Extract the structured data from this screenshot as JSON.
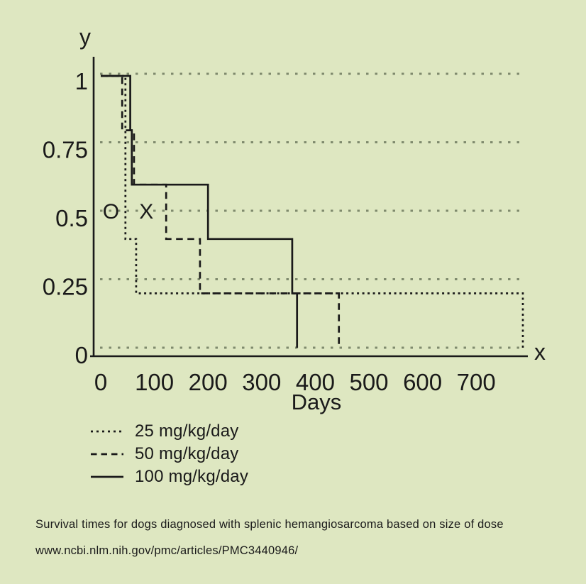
{
  "colors": {
    "background": "#dee7c1",
    "ink": "#1a1a1a",
    "gridline": "#7f8a6d"
  },
  "chart_data": {
    "type": "line",
    "subtype": "kaplan-meier-step-survival",
    "title": "Survival times for dogs diagnosed with splenic hemangiosarcoma based on size of dose",
    "xlabel": "Days",
    "ylabel": "",
    "x_axis": {
      "letter": "x",
      "ticks": [
        0,
        100,
        200,
        300,
        400,
        500,
        600,
        700
      ],
      "range": [
        0,
        800
      ]
    },
    "y_axis": {
      "letter": "y",
      "ticks": [
        1,
        0.75,
        0.5,
        0.25,
        0
      ],
      "tick_labels": [
        "1",
        "0.75",
        "0.5",
        "0.25",
        "0"
      ],
      "range": [
        0,
        1
      ]
    },
    "grid": "horizontal dotted gridlines at each y tick",
    "legend_position": "below-left",
    "series": [
      {
        "name": "25 mg/kg/day",
        "line_style": "dotted",
        "steps": [
          [
            0,
            1
          ],
          [
            46,
            1
          ],
          [
            46,
            0.4
          ],
          [
            66,
            0.4
          ],
          [
            66,
            0.2
          ],
          [
            787,
            0.2
          ],
          [
            787,
            0
          ]
        ]
      },
      {
        "name": "50 mg/kg/day",
        "line_style": "dashed",
        "steps": [
          [
            0,
            1
          ],
          [
            40,
            1
          ],
          [
            40,
            0.8
          ],
          [
            62,
            0.8
          ],
          [
            62,
            0.6
          ],
          [
            122,
            0.6
          ],
          [
            122,
            0.4
          ],
          [
            185,
            0.4
          ],
          [
            185,
            0.2
          ],
          [
            444,
            0.2
          ],
          [
            444,
            0
          ]
        ]
      },
      {
        "name": "100 mg/kg/day",
        "line_style": "solid",
        "steps": [
          [
            0,
            1
          ],
          [
            55,
            1
          ],
          [
            55,
            0.8
          ],
          [
            58,
            0.8
          ],
          [
            58,
            0.6
          ],
          [
            200,
            0.6
          ],
          [
            200,
            0.4
          ],
          [
            357,
            0.4
          ],
          [
            357,
            0.2
          ],
          [
            366,
            0.2
          ],
          [
            366,
            0
          ]
        ]
      }
    ],
    "annotations": [
      {
        "text": "O",
        "day": 19,
        "value": 0.5
      },
      {
        "text": "X",
        "day": 85,
        "value": 0.5
      }
    ]
  },
  "legend": {
    "items": [
      {
        "label": "25 mg/kg/day",
        "line_style": "dotted"
      },
      {
        "label": "50 mg/kg/day",
        "line_style": "dashed"
      },
      {
        "label": "100 mg/kg/day",
        "line_style": "solid"
      }
    ]
  },
  "caption": {
    "line1": "Survival times for dogs diagnosed with splenic hemangiosarcoma based on size of dose",
    "line2": "www.ncbi.nlm.nih.gov/pmc/articles/PMC3440946/"
  }
}
